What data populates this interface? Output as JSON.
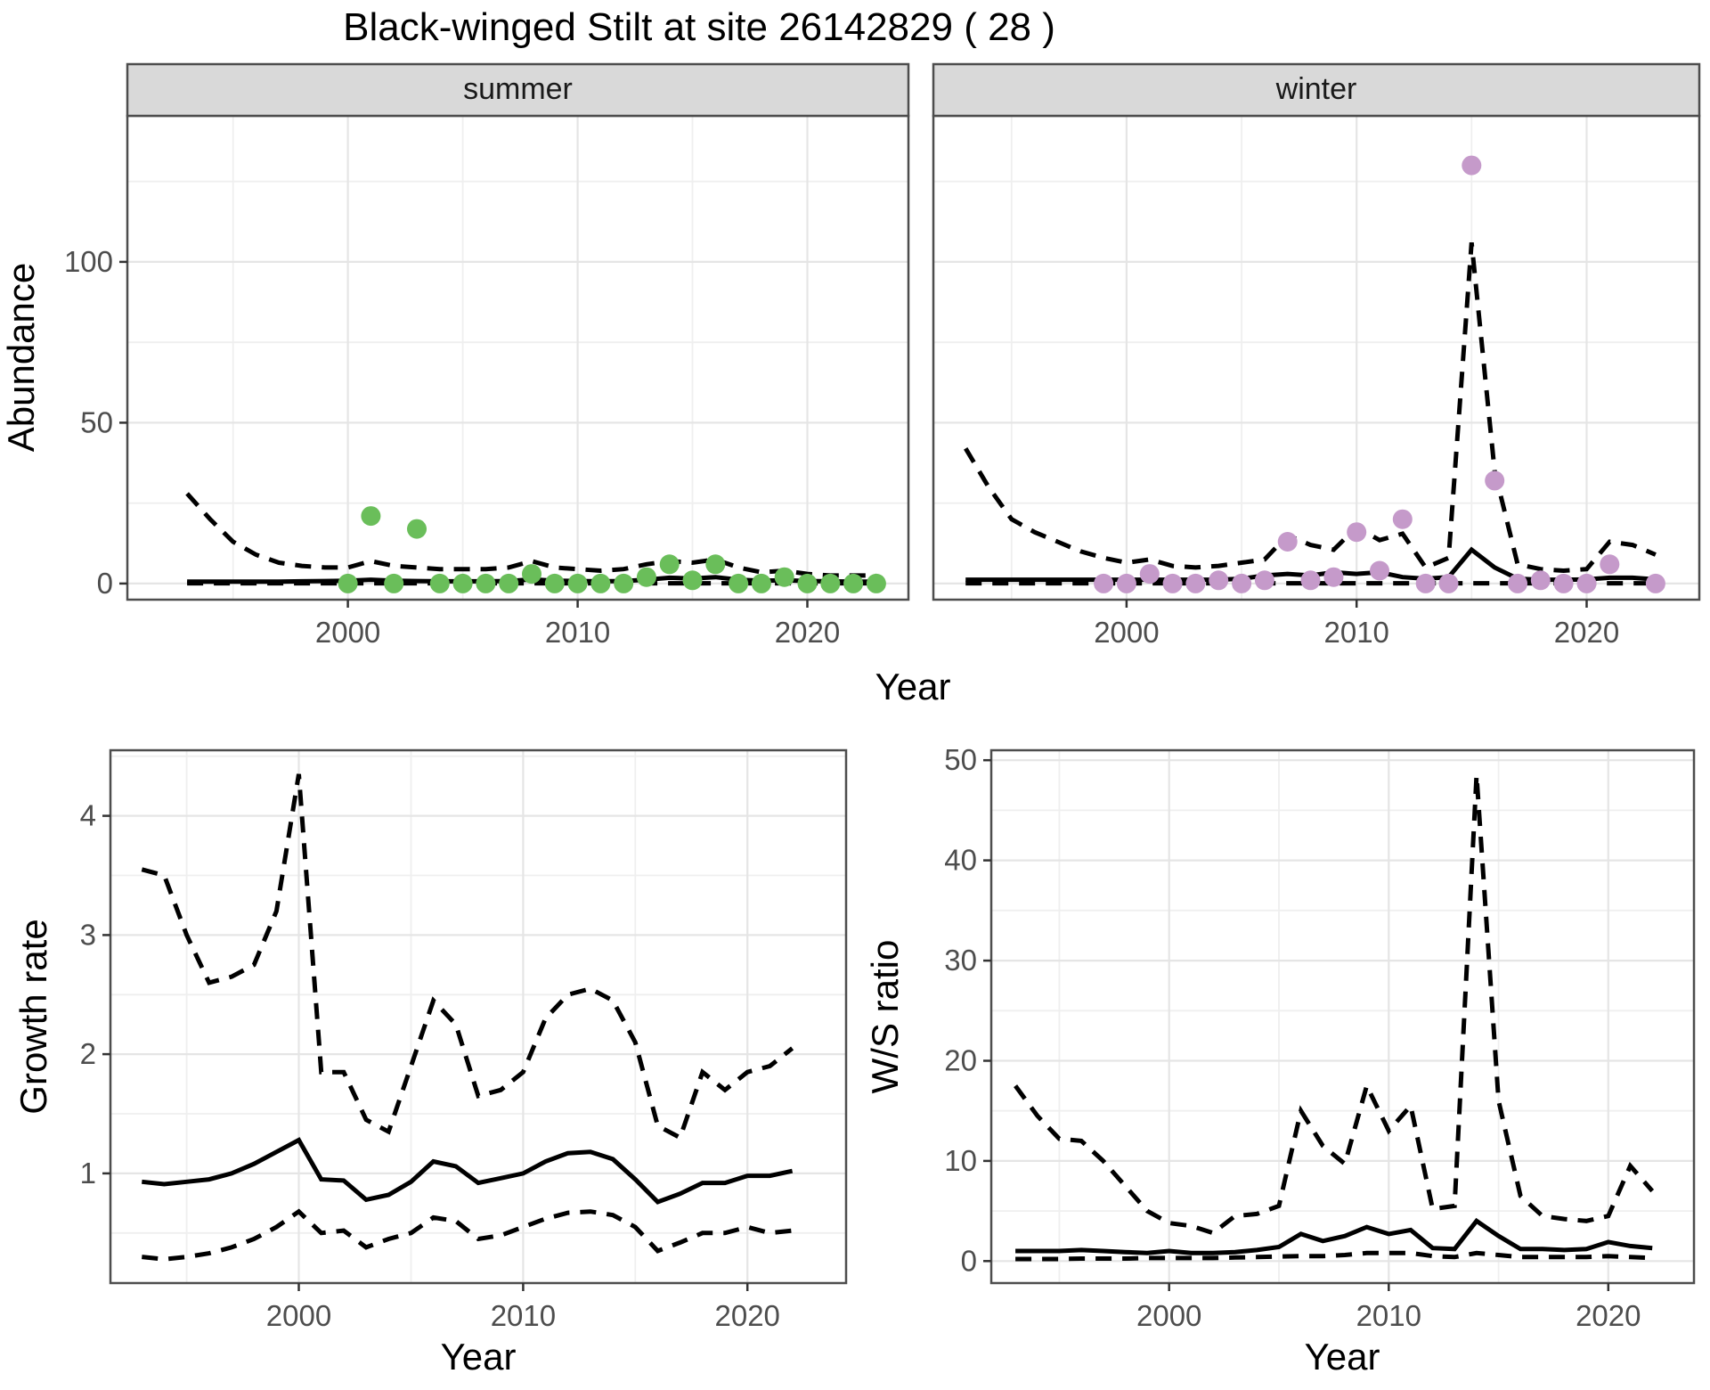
{
  "title": "Black-winged Stilt at site 26142829 ( 28 )",
  "colors": {
    "summer_point": "#6abe5a",
    "winter_point": "#c59aca",
    "strip_bg": "#d9d9d9",
    "panel_border": "#4d4d4d",
    "grid_major": "#e5e5e5",
    "grid_minor": "#efefef",
    "tick_mark": "#333333",
    "line": "#000000"
  },
  "chart_data": [
    {
      "id": "abundance_by_season",
      "type": "line+scatter",
      "xlabel": "Year",
      "ylabel": "Abundance",
      "xticks": [
        2000,
        2010,
        2020
      ],
      "yticks": [
        0,
        50,
        100
      ],
      "minor_xticks": [
        1995,
        2005,
        2015
      ],
      "minor_yticks": [
        25,
        75,
        125
      ],
      "xlim": [
        1991,
        2024.8
      ],
      "ylim": [
        -5,
        145
      ],
      "legend": "none",
      "grid": true,
      "line_years": [
        1993,
        1994,
        1995,
        1996,
        1997,
        1998,
        1999,
        2000,
        2001,
        2002,
        2003,
        2004,
        2005,
        2006,
        2007,
        2008,
        2009,
        2010,
        2011,
        2012,
        2013,
        2014,
        2015,
        2016,
        2017,
        2018,
        2019,
        2020,
        2021,
        2022,
        2023
      ],
      "facets": [
        {
          "label": "summer",
          "point_color": "#6abe5a",
          "upper_ci": [
            28,
            20,
            13,
            9,
            6.5,
            5.5,
            5,
            5,
            7,
            5.5,
            5,
            4.5,
            4.5,
            4.5,
            5,
            7,
            5,
            4.5,
            4,
            4.5,
            6,
            7,
            6.5,
            7.5,
            5,
            3.5,
            4,
            3,
            2.5,
            2.5,
            2.5
          ],
          "fit": [
            0.6,
            0.6,
            0.6,
            0.6,
            0.6,
            0.7,
            0.8,
            0.9,
            1.2,
            0.9,
            0.8,
            0.7,
            0.7,
            0.7,
            0.8,
            1.3,
            0.9,
            0.8,
            0.7,
            0.8,
            1.2,
            1.8,
            1.6,
            2.0,
            1.2,
            0.9,
            1.0,
            0.8,
            0.7,
            0.6,
            0.6
          ],
          "lower_ci": [
            0.1,
            0.1,
            0.1,
            0.1,
            0.1,
            0.1,
            0.1,
            0.1,
            0.1,
            0.1,
            0.1,
            0.1,
            0.1,
            0.1,
            0.1,
            0.1,
            0.1,
            0.1,
            0.1,
            0.1,
            0.1,
            0.1,
            0.1,
            0.1,
            0.1,
            0.1,
            0.1,
            0.1,
            0.1,
            0.1,
            0.1
          ],
          "point_years": [
            2000,
            2001,
            2002,
            2003,
            2004,
            2005,
            2006,
            2007,
            2008,
            2009,
            2010,
            2011,
            2012,
            2013,
            2014,
            2015,
            2016,
            2017,
            2018,
            2019,
            2020,
            2021,
            2022,
            2023
          ],
          "point_values": [
            0,
            21,
            0,
            17,
            0,
            0,
            0,
            0,
            3,
            0,
            0,
            0,
            0,
            2,
            6,
            1,
            6,
            0,
            0,
            2,
            0,
            0,
            0,
            0
          ]
        },
        {
          "label": "winter",
          "point_color": "#c59aca",
          "upper_ci": [
            42,
            30,
            20,
            16,
            13,
            10,
            8,
            6.5,
            7.5,
            5.5,
            5,
            5.5,
            6.5,
            7.5,
            15,
            12,
            10.5,
            17.5,
            13.5,
            15.5,
            5,
            8,
            106,
            35,
            6,
            4.5,
            4,
            4.5,
            13,
            12,
            9
          ],
          "fit": [
            1.2,
            1.2,
            1.2,
            1.2,
            1.2,
            1.2,
            1.2,
            1.2,
            1.2,
            1.2,
            1.2,
            1.2,
            1.5,
            2.5,
            3,
            2.5,
            3.5,
            3,
            3.5,
            2,
            1.5,
            2,
            10.5,
            5,
            1.5,
            1.2,
            1.2,
            1.3,
            1.8,
            1.8,
            1.3
          ],
          "lower_ci": [
            0.1,
            0.1,
            0.1,
            0.1,
            0.1,
            0.1,
            0.1,
            0.1,
            0.1,
            0.1,
            0.1,
            0.1,
            0.1,
            0.1,
            0.1,
            0.1,
            0.1,
            0.1,
            0.1,
            0.1,
            0.1,
            0.1,
            0.1,
            0.1,
            0.1,
            0.1,
            0.1,
            0.1,
            0.1,
            0.1,
            0.1
          ],
          "point_years": [
            1999,
            2000,
            2001,
            2002,
            2003,
            2004,
            2005,
            2006,
            2007,
            2008,
            2009,
            2010,
            2011,
            2012,
            2013,
            2014,
            2015,
            2016,
            2017,
            2018,
            2019,
            2020,
            2021,
            2023
          ],
          "point_values": [
            0,
            0,
            3,
            0,
            0,
            1,
            0,
            1,
            13,
            1,
            2,
            16,
            4,
            20,
            0,
            0,
            130,
            32,
            0,
            1,
            0,
            0,
            6,
            0
          ]
        }
      ]
    },
    {
      "id": "growth_rate",
      "type": "line",
      "xlabel": "Year",
      "ylabel": "Growth rate",
      "xticks": [
        2000,
        2010,
        2020
      ],
      "yticks": [
        1,
        2,
        3,
        4
      ],
      "minor_xticks": [
        1995,
        2005,
        2015
      ],
      "minor_yticks": [
        0.5,
        1.5,
        2.5,
        3.5,
        4.5
      ],
      "xlim": [
        1991.6,
        2024.4
      ],
      "ylim": [
        0.08,
        4.55
      ],
      "grid": true,
      "years": [
        1993,
        1994,
        1995,
        1996,
        1997,
        1998,
        1999,
        2000,
        2001,
        2002,
        2003,
        2004,
        2005,
        2006,
        2007,
        2008,
        2009,
        2010,
        2011,
        2012,
        2013,
        2014,
        2015,
        2016,
        2017,
        2018,
        2019,
        2020,
        2021,
        2022
      ],
      "upper_ci": [
        3.55,
        3.5,
        3.0,
        2.6,
        2.65,
        2.75,
        3.2,
        4.35,
        1.85,
        1.85,
        1.45,
        1.35,
        1.9,
        2.45,
        2.25,
        1.65,
        1.7,
        1.85,
        2.3,
        2.5,
        2.55,
        2.45,
        2.1,
        1.4,
        1.3,
        1.85,
        1.7,
        1.85,
        1.9,
        2.05
      ],
      "fit": [
        0.93,
        0.91,
        0.93,
        0.95,
        1.0,
        1.08,
        1.18,
        1.28,
        0.95,
        0.94,
        0.78,
        0.82,
        0.93,
        1.1,
        1.06,
        0.92,
        0.96,
        1.0,
        1.1,
        1.17,
        1.18,
        1.12,
        0.95,
        0.76,
        0.83,
        0.92,
        0.92,
        0.98,
        0.98,
        1.02
      ],
      "lower_ci": [
        0.3,
        0.28,
        0.3,
        0.33,
        0.38,
        0.45,
        0.55,
        0.68,
        0.5,
        0.52,
        0.38,
        0.45,
        0.5,
        0.63,
        0.6,
        0.45,
        0.48,
        0.55,
        0.62,
        0.67,
        0.68,
        0.65,
        0.55,
        0.35,
        0.42,
        0.5,
        0.5,
        0.55,
        0.5,
        0.52
      ]
    },
    {
      "id": "winter_summer_ratio",
      "type": "line",
      "xlabel": "Year",
      "ylabel": "W/S ratio",
      "xticks": [
        2000,
        2010,
        2020
      ],
      "yticks": [
        0,
        10,
        20,
        30,
        40,
        50
      ],
      "minor_xticks": [
        1995,
        2005,
        2015
      ],
      "minor_yticks": [
        5,
        15,
        25,
        35,
        45
      ],
      "xlim": [
        1991.9,
        2023.9
      ],
      "ylim": [
        -2.2,
        51
      ],
      "grid": true,
      "years": [
        1993,
        1994,
        1995,
        1996,
        1997,
        1998,
        1999,
        2000,
        2001,
        2002,
        2003,
        2004,
        2005,
        2006,
        2007,
        2008,
        2009,
        2010,
        2011,
        2012,
        2013,
        2014,
        2015,
        2016,
        2017,
        2018,
        2019,
        2020,
        2021,
        2022
      ],
      "upper_ci": [
        17.5,
        14.5,
        12.2,
        12,
        10,
        7.5,
        5,
        3.8,
        3.5,
        2.8,
        4.5,
        4.7,
        5.5,
        15,
        11.5,
        9.7,
        17.5,
        13,
        15.5,
        5.2,
        5.5,
        48.5,
        16,
        6.5,
        4.5,
        4.2,
        4,
        4.5,
        9.5,
        7
      ],
      "fit": [
        1,
        1,
        1,
        1.1,
        1,
        0.9,
        0.8,
        1,
        0.8,
        0.8,
        0.9,
        1.1,
        1.4,
        2.7,
        2,
        2.5,
        3.4,
        2.7,
        3.1,
        1.3,
        1.2,
        4,
        2.5,
        1.2,
        1.2,
        1.1,
        1.2,
        1.9,
        1.5,
        1.3
      ],
      "lower_ci": [
        0.2,
        0.2,
        0.2,
        0.25,
        0.25,
        0.25,
        0.3,
        0.3,
        0.3,
        0.3,
        0.35,
        0.4,
        0.45,
        0.5,
        0.5,
        0.6,
        0.8,
        0.8,
        0.8,
        0.5,
        0.4,
        0.8,
        0.6,
        0.4,
        0.4,
        0.4,
        0.4,
        0.5,
        0.4,
        0.3
      ]
    }
  ]
}
